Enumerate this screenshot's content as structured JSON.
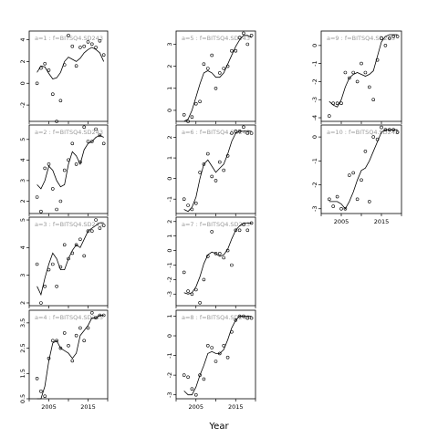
{
  "chart_data": {
    "type": "scatter",
    "title": "",
    "xlabel": "Year",
    "ylabel": "",
    "xlim": [
      2000,
      2020
    ],
    "x_ticks": [
      2005,
      2015
    ],
    "x_ticks_minor": [
      2000,
      2005,
      2010,
      2015,
      2020
    ],
    "grid": false,
    "panels": [
      {
        "label": "a=1 : f=BITSQ4.SD243",
        "ylim": [
          -3.5,
          4.8
        ],
        "y_ticks": [
          -2,
          0,
          2,
          4
        ],
        "x": [
          2002,
          2003,
          2004,
          2005,
          2006,
          2007,
          2008,
          2009,
          2010,
          2011,
          2012,
          2013,
          2014,
          2015,
          2016,
          2017,
          2018,
          2019
        ],
        "y": [
          0.0,
          1.4,
          1.8,
          1.2,
          -1.0,
          -3.5,
          -1.6,
          1.7,
          4.4,
          3.4,
          1.6,
          3.3,
          3.4,
          3.8,
          3.6,
          3.3,
          3.9,
          2.6
        ],
        "smooth_y": [
          1.0,
          1.6,
          1.5,
          0.9,
          0.4,
          0.5,
          1.0,
          2.0,
          2.4,
          2.2,
          2.0,
          2.3,
          2.8,
          3.1,
          3.3,
          3.1,
          2.8,
          2.0
        ]
      },
      {
        "label": "a=2 : f=BITSQ4.SD243",
        "ylim": [
          1.4,
          5.7
        ],
        "y_ticks": [
          2,
          3,
          4,
          5
        ],
        "x": [
          2002,
          2003,
          2004,
          2005,
          2006,
          2007,
          2008,
          2009,
          2010,
          2011,
          2012,
          2013,
          2014,
          2015,
          2016,
          2017,
          2018,
          2019
        ],
        "y": [
          2.2,
          1.5,
          3.6,
          3.8,
          2.6,
          1.6,
          2.0,
          3.5,
          4.0,
          4.8,
          3.8,
          3.9,
          5.6,
          4.9,
          4.9,
          5.5,
          5.2,
          4.8
        ],
        "smooth_y": [
          2.8,
          2.6,
          3.0,
          3.7,
          3.5,
          3.0,
          2.7,
          2.8,
          3.8,
          4.4,
          4.2,
          3.8,
          4.5,
          4.8,
          4.9,
          5.1,
          5.2,
          5.1
        ]
      },
      {
        "label": "a=3 : f=BITSQ4.SD243",
        "ylim": [
          1.9,
          5.1
        ],
        "y_ticks": [
          2.0,
          3.0,
          4.0,
          5.0
        ],
        "x": [
          2002,
          2003,
          2004,
          2005,
          2006,
          2007,
          2008,
          2009,
          2010,
          2011,
          2012,
          2013,
          2014,
          2015,
          2016,
          2017,
          2018,
          2019
        ],
        "y": [
          3.4,
          2.0,
          2.6,
          3.2,
          3.4,
          2.6,
          3.3,
          4.1,
          3.6,
          3.8,
          4.1,
          4.3,
          3.7,
          4.6,
          4.6,
          5.0,
          4.7,
          4.8
        ],
        "smooth_y": [
          2.6,
          2.3,
          2.9,
          3.4,
          3.8,
          3.6,
          3.2,
          3.2,
          3.6,
          3.9,
          4.1,
          4.0,
          4.3,
          4.6,
          4.7,
          4.8,
          4.9,
          4.9
        ]
      },
      {
        "label": "a=4 : f=BITSQ4.SD243",
        "ylim": [
          0.5,
          4.0
        ],
        "y_ticks": [
          0.5,
          1.5,
          2.5,
          3.5
        ],
        "x": [
          2002,
          2003,
          2004,
          2005,
          2006,
          2007,
          2008,
          2009,
          2010,
          2011,
          2012,
          2013,
          2014,
          2015,
          2016,
          2017,
          2018,
          2019
        ],
        "y": [
          1.3,
          0.8,
          0.6,
          2.1,
          2.8,
          2.8,
          2.5,
          3.1,
          2.6,
          2.0,
          3.0,
          3.3,
          2.8,
          3.3,
          3.9,
          3.7,
          3.8,
          3.8
        ],
        "smooth_y": [
          0.5,
          0.5,
          1.0,
          2.0,
          2.7,
          2.8,
          2.5,
          2.4,
          2.3,
          2.1,
          2.3,
          3.0,
          3.2,
          3.4,
          3.7,
          3.7,
          3.8,
          3.8
        ]
      },
      {
        "label": "a=5 : f=BITSQ4.SD243",
        "ylim": [
          -0.5,
          3.6
        ],
        "y_ticks": [
          0,
          1,
          2,
          3
        ],
        "x": [
          2002,
          2003,
          2004,
          2005,
          2006,
          2007,
          2008,
          2009,
          2010,
          2011,
          2012,
          2013,
          2014,
          2015,
          2016,
          2017,
          2018,
          2019
        ],
        "y": [
          -0.2,
          -0.5,
          -0.3,
          0.3,
          0.4,
          2.1,
          1.9,
          2.5,
          1.0,
          1.7,
          1.9,
          2.0,
          2.7,
          2.7,
          3.3,
          3.5,
          3.0,
          3.4
        ],
        "smooth_y": [
          -0.5,
          -0.4,
          0.0,
          0.6,
          1.2,
          1.7,
          1.8,
          1.7,
          1.5,
          1.5,
          1.7,
          2.1,
          2.5,
          2.9,
          3.2,
          3.4,
          3.4,
          3.3
        ]
      },
      {
        "label": "a=6 : f=BITSQ4.SD243",
        "ylim": [
          -1.7,
          2.6
        ],
        "y_ticks": [
          -1,
          0,
          1,
          2
        ],
        "x": [
          2002,
          2003,
          2004,
          2005,
          2006,
          2007,
          2008,
          2009,
          2010,
          2011,
          2012,
          2013,
          2014,
          2015,
          2016,
          2017,
          2018,
          2019
        ],
        "y": [
          -1.0,
          -1.3,
          -1.5,
          -1.2,
          0.3,
          0.7,
          1.2,
          0.1,
          -0.1,
          0.8,
          0.4,
          1.1,
          2.2,
          2.3,
          2.3,
          2.5,
          2.2,
          2.2
        ],
        "smooth_y": [
          -1.5,
          -1.6,
          -1.4,
          -0.9,
          0.0,
          0.7,
          0.9,
          0.6,
          0.3,
          0.5,
          0.7,
          1.2,
          1.8,
          2.2,
          2.3,
          2.3,
          2.3,
          2.3
        ]
      },
      {
        "label": "a=7 : f=BITSQ4.SD243",
        "ylim": [
          -3.8,
          2.3
        ],
        "y_ticks": [
          -3,
          -2,
          -1,
          0,
          1,
          2
        ],
        "x": [
          2002,
          2003,
          2004,
          2005,
          2006,
          2007,
          2008,
          2009,
          2010,
          2011,
          2012,
          2013,
          2014,
          2015,
          2016,
          2017,
          2018,
          2019
        ],
        "y": [
          -1.5,
          -2.8,
          -3.0,
          -2.7,
          -3.6,
          -2.0,
          -0.4,
          1.3,
          -0.2,
          -0.2,
          -0.5,
          0.0,
          -1.0,
          1.4,
          1.4,
          1.8,
          1.4,
          1.9
        ],
        "smooth_y": [
          -2.9,
          -3.0,
          -2.9,
          -2.5,
          -1.8,
          -0.9,
          -0.3,
          -0.1,
          -0.2,
          -0.4,
          -0.3,
          0.1,
          0.8,
          1.4,
          1.7,
          1.9,
          1.9,
          1.9
        ]
      },
      {
        "label": "a=8 : f=BITSQ4.SD243",
        "ylim": [
          -3.2,
          1.3
        ],
        "y_ticks": [
          -3,
          -2,
          -1,
          0,
          1
        ],
        "x": [
          2002,
          2003,
          2004,
          2005,
          2006,
          2007,
          2008,
          2009,
          2010,
          2011,
          2012,
          2013,
          2014,
          2015,
          2016,
          2017,
          2018,
          2019
        ],
        "y": [
          -2.0,
          -2.1,
          -2.7,
          -3.0,
          -2.0,
          -2.2,
          -0.5,
          -0.6,
          -1.3,
          -0.9,
          -0.5,
          -1.1,
          0.2,
          0.8,
          1.0,
          1.0,
          0.9,
          0.9
        ],
        "smooth_y": [
          -2.8,
          -3.0,
          -3.0,
          -2.6,
          -2.0,
          -1.5,
          -0.9,
          -0.8,
          -0.9,
          -0.9,
          -0.7,
          -0.2,
          0.4,
          0.8,
          1.0,
          1.0,
          1.0,
          1.0
        ]
      },
      {
        "label": "a=9 : f=BITSQ4.SD243",
        "ylim": [
          -4.2,
          0.8
        ],
        "y_ticks": [
          -4,
          -3,
          -2,
          -1,
          0
        ],
        "x": [
          2002,
          2003,
          2004,
          2005,
          2006,
          2007,
          2008,
          2009,
          2010,
          2011,
          2012,
          2013,
          2014,
          2015,
          2016,
          2017,
          2018,
          2019
        ],
        "y": [
          -3.9,
          -3.2,
          -3.2,
          -3.2,
          -1.5,
          -1.8,
          -1.5,
          -2.0,
          -1.0,
          -1.5,
          -2.3,
          -3.0,
          -0.8,
          0.4,
          0.0,
          0.4,
          0.5,
          0.5
        ],
        "smooth_y": [
          -3.1,
          -3.3,
          -3.4,
          -3.0,
          -2.3,
          -1.8,
          -1.6,
          -1.5,
          -1.6,
          -1.7,
          -1.6,
          -1.4,
          -0.6,
          0.2,
          0.5,
          0.6,
          0.6,
          0.6
        ]
      },
      {
        "label": "a=10 : f=BITSQ4.SD243",
        "ylim": [
          -3.2,
          0.5
        ],
        "y_ticks": [
          -3,
          -2,
          -1,
          0
        ],
        "x": [
          2002,
          2003,
          2004,
          2005,
          2006,
          2007,
          2008,
          2009,
          2010,
          2011,
          2012,
          2013,
          2014,
          2015,
          2016,
          2017,
          2018,
          2019
        ],
        "y": [
          -2.6,
          -2.9,
          -2.5,
          -3.0,
          -3.0,
          -1.6,
          -1.5,
          -2.6,
          -1.8,
          -0.6,
          -2.7,
          0.0,
          -0.1,
          0.4,
          0.3,
          0.3,
          0.3,
          0.2
        ],
        "smooth_y": [
          -2.7,
          -2.7,
          -2.7,
          -2.8,
          -3.0,
          -2.7,
          -2.3,
          -1.8,
          -1.4,
          -1.3,
          -1.0,
          -0.6,
          -0.2,
          0.2,
          0.3,
          0.3,
          0.3,
          0.3
        ]
      }
    ]
  }
}
